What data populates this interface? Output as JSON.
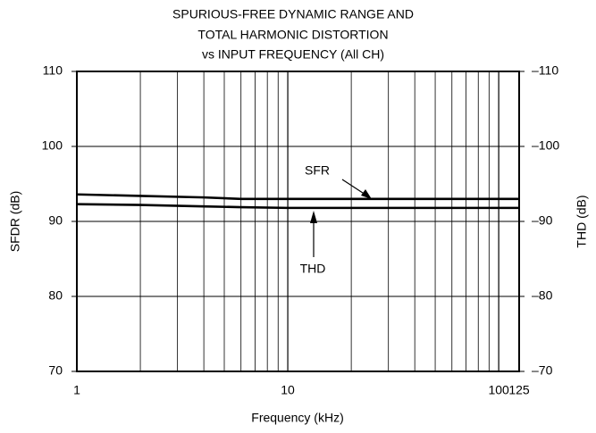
{
  "chart_data": {
    "type": "line",
    "title": [
      "SPURIOUS-FREE DYNAMIC RANGE AND",
      "TOTAL HARMONIC DISTORTION",
      "vs INPUT FREQUENCY (All CH)"
    ],
    "xlabel": "Frequency (kHz)",
    "ylabel": "SFDR (dB)",
    "y2label": "THD (dB)",
    "xscale": "log",
    "grid": true,
    "xlim": [
      1,
      125
    ],
    "xticks": [
      1,
      10,
      100,
      125
    ],
    "ylim": [
      70,
      110
    ],
    "yticks": [
      70,
      80,
      90,
      100,
      110
    ],
    "y2lim": [
      -70,
      -110
    ],
    "y2ticks": [
      {
        "value": -70,
        "label": "–70"
      },
      {
        "value": -80,
        "label": "–80"
      },
      {
        "value": -90,
        "label": "–90"
      },
      {
        "value": -100,
        "label": "–100"
      },
      {
        "value": -110,
        "label": "–110"
      }
    ],
    "x": [
      1,
      2,
      4,
      6,
      10,
      20,
      50,
      125
    ],
    "series": [
      {
        "name": "SFR",
        "color": "#000000",
        "values": [
          93.6,
          93.4,
          93.2,
          93.0,
          93.0,
          93.0,
          93.0,
          93.0
        ]
      },
      {
        "name": "THD",
        "color": "#000000",
        "axis": "y2",
        "values": [
          -92.3,
          -92.2,
          -92.0,
          -91.9,
          -91.8,
          -91.8,
          -91.8,
          -91.8
        ]
      }
    ]
  }
}
